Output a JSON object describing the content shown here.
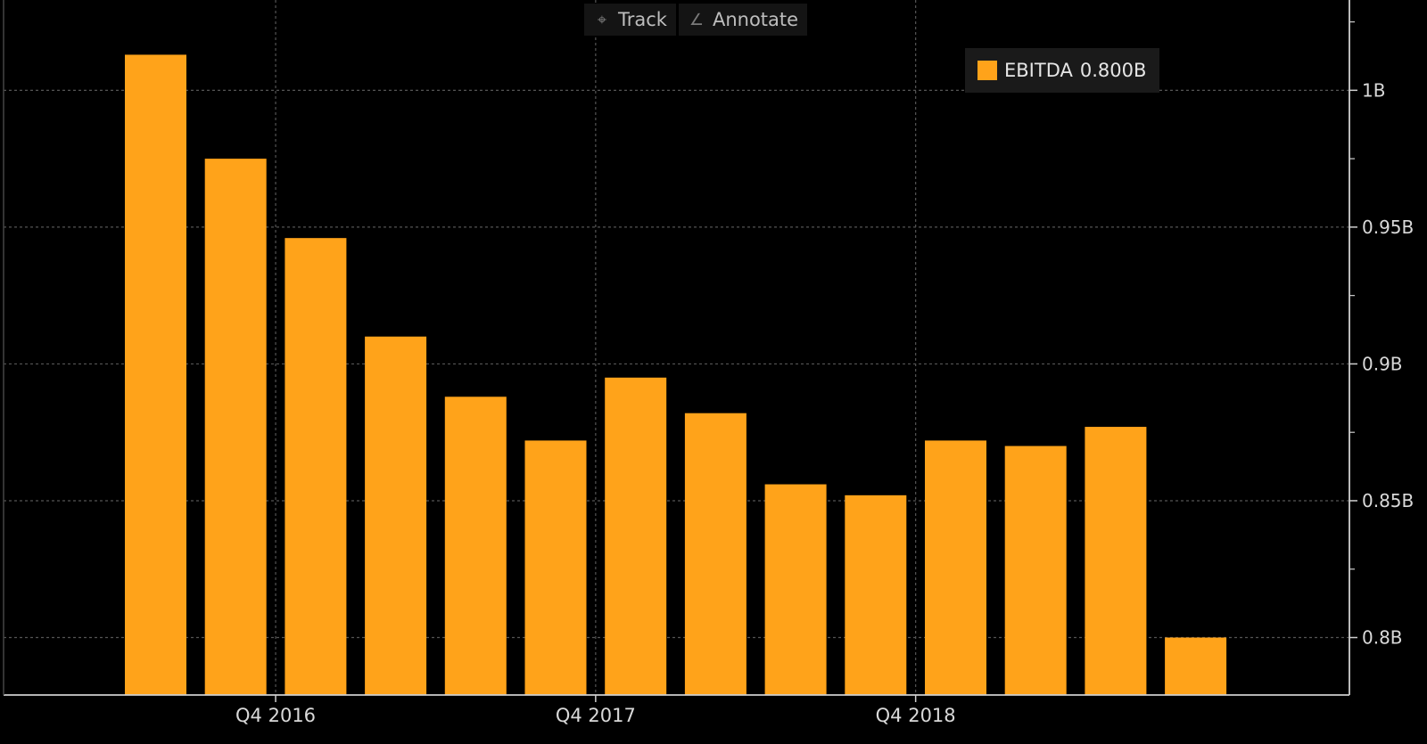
{
  "toolbar": {
    "track_label": "Track",
    "annotate_label": "Annotate",
    "track_icon": "crosshair-icon",
    "annotate_icon": "pencil-icon"
  },
  "legend": {
    "series_name": "EBITDA",
    "last_value": "0.800B"
  },
  "colors": {
    "bar": "#FFA31A",
    "background": "#000000",
    "grid": "#555555",
    "axis": "#cfcfcf"
  },
  "chart_data": {
    "type": "bar",
    "grid": true,
    "legend_position": "top-right",
    "y_axis_side": "right",
    "ylim": [
      0.779,
      1.033
    ],
    "yticks": [
      0.8,
      0.85,
      0.9,
      0.95,
      1.0
    ],
    "ytick_labels": [
      "0.8B",
      "0.85B",
      "0.9B",
      "0.95B",
      "1B"
    ],
    "x_tick_labels": [
      {
        "label": "Q4 2016",
        "after_bar_index": 1
      },
      {
        "label": "Q4 2017",
        "after_bar_index": 5
      },
      {
        "label": "Q4 2018",
        "after_bar_index": 9
      }
    ],
    "series": [
      {
        "name": "EBITDA",
        "values": [
          1.013,
          0.975,
          0.946,
          0.91,
          0.888,
          0.872,
          0.895,
          0.882,
          0.856,
          0.852,
          0.872,
          0.87,
          0.877,
          0.8
        ]
      }
    ]
  }
}
